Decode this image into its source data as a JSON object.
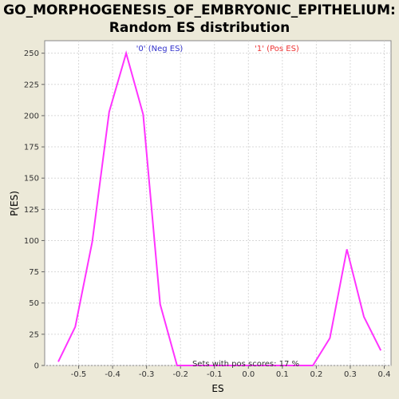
{
  "chart_data": {
    "type": "line",
    "title": "GO_MORPHOGENESIS_OF_EMBRYONIC_EPITHELIUM:",
    "subtitle": "Random ES distribution",
    "xlabel": "ES",
    "ylabel": "P(ES)",
    "xlim": [
      -0.6,
      0.42
    ],
    "ylim": [
      0,
      260
    ],
    "x_ticks": [
      -0.5,
      -0.4,
      -0.3,
      -0.2,
      -0.1,
      0.0,
      0.1,
      0.2,
      0.3,
      0.4
    ],
    "x_tick_labels": [
      "-0.5",
      "-0.4",
      "-0.3",
      "-0.2",
      "-0.1",
      "0.0",
      "0.1",
      "0.2",
      "0.3",
      "0.4"
    ],
    "y_ticks": [
      0,
      25,
      50,
      75,
      100,
      125,
      150,
      175,
      200,
      225,
      250
    ],
    "y_tick_labels": [
      "0",
      "25",
      "50",
      "75",
      "100",
      "125",
      "150",
      "175",
      "200",
      "225",
      "250"
    ],
    "grid": true,
    "series": [
      {
        "color": "#ff33ff",
        "x": [
          -0.56,
          -0.51,
          -0.46,
          -0.41,
          -0.36,
          -0.31,
          -0.26,
          -0.21,
          -0.16,
          -0.11,
          -0.06,
          -0.01,
          0.04,
          0.09,
          0.14,
          0.19,
          0.24,
          0.29,
          0.34,
          0.39
        ],
        "y": [
          3,
          31,
          99,
          203,
          250,
          201,
          49,
          0,
          0,
          0,
          0,
          0,
          0,
          0,
          0,
          0,
          22,
          93,
          39,
          12
        ]
      }
    ],
    "legend": [
      {
        "label": "'0' (Neg ES)",
        "color": "#3333cc"
      },
      {
        "label": "'1' (Pos ES)",
        "color": "#ee3333"
      }
    ],
    "annotation": "Sets with pos scores: 17 %"
  }
}
